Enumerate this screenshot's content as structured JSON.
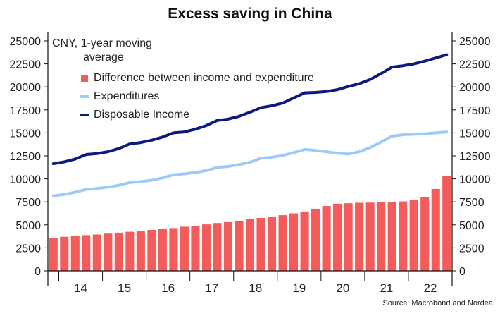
{
  "title": "Excess saving in China",
  "unit_note_line1": "CNY, 1-year moving",
  "unit_note_line2": "average",
  "source": "Source: Macrobond and Nordea",
  "colors": {
    "bars": "#f45b5b",
    "expenditures": "#9ecbf5",
    "income": "#0a1a7d",
    "axis": "#111111"
  },
  "chart_data": {
    "type": "bar+line",
    "title": "Excess saving in China",
    "ylabel": "CNY, 1-year moving average",
    "ylim": [
      0,
      25000
    ],
    "yticks": [
      0,
      2500,
      5000,
      7500,
      10000,
      12500,
      15000,
      17500,
      20000,
      22500,
      25000
    ],
    "ytick_labels": [
      "0",
      "2500",
      "5000",
      "7500",
      "10000",
      "12500",
      "15000",
      "17500",
      "20000",
      "22500",
      "25000"
    ],
    "x_axis_labels": [
      "14",
      "15",
      "16",
      "17",
      "18",
      "19",
      "20",
      "21",
      "22"
    ],
    "x_quarters": [
      "2013Q4",
      "2014Q1",
      "2014Q2",
      "2014Q3",
      "2014Q4",
      "2015Q1",
      "2015Q2",
      "2015Q3",
      "2015Q4",
      "2016Q1",
      "2016Q2",
      "2016Q3",
      "2016Q4",
      "2017Q1",
      "2017Q2",
      "2017Q3",
      "2017Q4",
      "2018Q1",
      "2018Q2",
      "2018Q3",
      "2018Q4",
      "2019Q1",
      "2019Q2",
      "2019Q3",
      "2019Q4",
      "2020Q1",
      "2020Q2",
      "2020Q3",
      "2020Q4",
      "2021Q1",
      "2021Q2",
      "2021Q3",
      "2021Q4",
      "2022Q1",
      "2022Q2",
      "2022Q3",
      "2022Q4"
    ],
    "legend_position": "top-left",
    "grid": false,
    "series": [
      {
        "name": "Difference between income and expenditure",
        "kind": "bar",
        "values": [
          3550,
          3700,
          3800,
          3880,
          3950,
          4050,
          4150,
          4250,
          4350,
          4450,
          4550,
          4650,
          4800,
          4900,
          5050,
          5200,
          5300,
          5450,
          5600,
          5750,
          5900,
          6050,
          6250,
          6450,
          6750,
          7050,
          7300,
          7350,
          7400,
          7420,
          7450,
          7450,
          7550,
          7750,
          8000,
          8900,
          10300
        ]
      },
      {
        "name": "Expenditures",
        "kind": "line",
        "values": [
          8150,
          8300,
          8550,
          8850,
          8950,
          9100,
          9300,
          9600,
          9700,
          9850,
          10100,
          10450,
          10550,
          10700,
          10900,
          11250,
          11350,
          11550,
          11800,
          12250,
          12350,
          12550,
          12850,
          13200,
          13100,
          12950,
          12800,
          12700,
          12950,
          13400,
          14000,
          14650,
          14800,
          14850,
          14900,
          15000,
          15100
        ]
      },
      {
        "name": "Disposable Income",
        "kind": "line",
        "values": [
          11650,
          11850,
          12150,
          12650,
          12750,
          12950,
          13300,
          13800,
          13950,
          14200,
          14550,
          15000,
          15100,
          15400,
          15800,
          16350,
          16500,
          16800,
          17250,
          17750,
          17950,
          18250,
          18800,
          19350,
          19400,
          19500,
          19700,
          20050,
          20350,
          20800,
          21450,
          22150,
          22300,
          22500,
          22800,
          23150,
          23500
        ]
      }
    ]
  }
}
